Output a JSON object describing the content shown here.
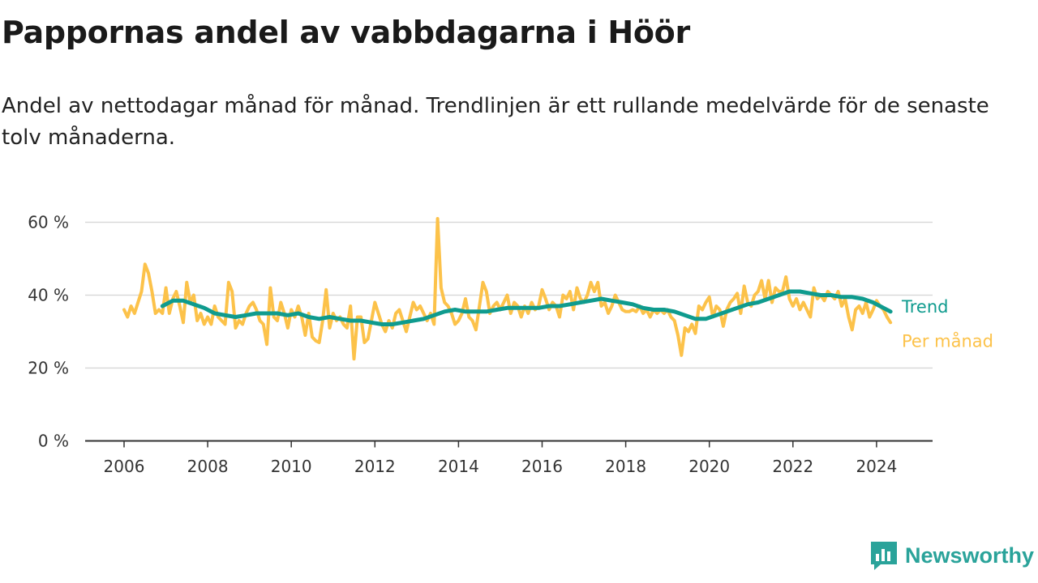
{
  "title": "Pappornas andel av vabbdagarna i Höör",
  "subtitle": "Andel av nettodagar månad för månad. Trendlinjen är ett rullande medelvärde för de senaste tolv månaderna.",
  "brand": "Newsworthy",
  "colors": {
    "monthly": "#fcc24a",
    "trend": "#0f9b8e",
    "grid": "#d9d9d9",
    "axis": "#333333",
    "brand": "#2aa39a"
  },
  "chart_data": {
    "type": "line",
    "x_ticks": [
      "2006",
      "2008",
      "2010",
      "2012",
      "2014",
      "2016",
      "2018",
      "2020",
      "2022",
      "2024"
    ],
    "y_ticks": [
      "0 %",
      "20 %",
      "40 %",
      "60 %"
    ],
    "y_tick_values": [
      0,
      20,
      40,
      60
    ],
    "ylim": [
      0,
      60
    ],
    "xlim": [
      "2006-01",
      "2024-05"
    ],
    "grid": true,
    "series": [
      {
        "name": "Per månad",
        "color": "#fcc24a",
        "points": [
          [
            "2006-01",
            36
          ],
          [
            "2006-02",
            34
          ],
          [
            "2006-03",
            37
          ],
          [
            "2006-04",
            35
          ],
          [
            "2006-05",
            38
          ],
          [
            "2006-06",
            41
          ],
          [
            "2006-07",
            48.5
          ],
          [
            "2006-08",
            46
          ],
          [
            "2006-09",
            41
          ],
          [
            "2006-10",
            35
          ],
          [
            "2006-11",
            36
          ],
          [
            "2006-12",
            35
          ],
          [
            "2007-01",
            42
          ],
          [
            "2007-02",
            35
          ],
          [
            "2007-03",
            39
          ],
          [
            "2007-04",
            41
          ],
          [
            "2007-05",
            37
          ],
          [
            "2007-06",
            32.5
          ],
          [
            "2007-07",
            43.5
          ],
          [
            "2007-08",
            38
          ],
          [
            "2007-09",
            40
          ],
          [
            "2007-10",
            33
          ],
          [
            "2007-11",
            35
          ],
          [
            "2007-12",
            32
          ],
          [
            "2008-01",
            34
          ],
          [
            "2008-02",
            32
          ],
          [
            "2008-03",
            37
          ],
          [
            "2008-04",
            34
          ],
          [
            "2008-05",
            33
          ],
          [
            "2008-06",
            32
          ],
          [
            "2008-07",
            43.5
          ],
          [
            "2008-08",
            41
          ],
          [
            "2008-09",
            31
          ],
          [
            "2008-10",
            33
          ],
          [
            "2008-11",
            32
          ],
          [
            "2008-12",
            35
          ],
          [
            "2009-01",
            37
          ],
          [
            "2009-02",
            38
          ],
          [
            "2009-03",
            36
          ],
          [
            "2009-04",
            33
          ],
          [
            "2009-05",
            32
          ],
          [
            "2009-06",
            26.5
          ],
          [
            "2009-07",
            42
          ],
          [
            "2009-08",
            34
          ],
          [
            "2009-09",
            33
          ],
          [
            "2009-10",
            38
          ],
          [
            "2009-11",
            35
          ],
          [
            "2009-12",
            31
          ],
          [
            "2010-01",
            36
          ],
          [
            "2010-02",
            34
          ],
          [
            "2010-03",
            37
          ],
          [
            "2010-04",
            34
          ],
          [
            "2010-05",
            29
          ],
          [
            "2010-06",
            35
          ],
          [
            "2010-07",
            28.5
          ],
          [
            "2010-08",
            27.5
          ],
          [
            "2010-09",
            27
          ],
          [
            "2010-10",
            33
          ],
          [
            "2010-11",
            41.5
          ],
          [
            "2010-12",
            31
          ],
          [
            "2011-01",
            35
          ],
          [
            "2011-02",
            33
          ],
          [
            "2011-03",
            34
          ],
          [
            "2011-04",
            32
          ],
          [
            "2011-05",
            31
          ],
          [
            "2011-06",
            37
          ],
          [
            "2011-07",
            22.5
          ],
          [
            "2011-08",
            34
          ],
          [
            "2011-09",
            34
          ],
          [
            "2011-10",
            27
          ],
          [
            "2011-11",
            28
          ],
          [
            "2011-12",
            33
          ],
          [
            "2012-01",
            38
          ],
          [
            "2012-02",
            35
          ],
          [
            "2012-03",
            32
          ],
          [
            "2012-04",
            30
          ],
          [
            "2012-05",
            33
          ],
          [
            "2012-06",
            31
          ],
          [
            "2012-07",
            35
          ],
          [
            "2012-08",
            36
          ],
          [
            "2012-09",
            33
          ],
          [
            "2012-10",
            30
          ],
          [
            "2012-11",
            34
          ],
          [
            "2012-12",
            38
          ],
          [
            "2013-01",
            36
          ],
          [
            "2013-02",
            37
          ],
          [
            "2013-03",
            35
          ],
          [
            "2013-04",
            33
          ],
          [
            "2013-05",
            35
          ],
          [
            "2013-06",
            32
          ],
          [
            "2013-07",
            61
          ],
          [
            "2013-08",
            42
          ],
          [
            "2013-09",
            38
          ],
          [
            "2013-10",
            37
          ],
          [
            "2013-11",
            35
          ],
          [
            "2013-12",
            32
          ],
          [
            "2014-01",
            33
          ],
          [
            "2014-02",
            35
          ],
          [
            "2014-03",
            39
          ],
          [
            "2014-04",
            34
          ],
          [
            "2014-05",
            33
          ],
          [
            "2014-06",
            30.5
          ],
          [
            "2014-07",
            37
          ],
          [
            "2014-08",
            43.5
          ],
          [
            "2014-09",
            41
          ],
          [
            "2014-10",
            35
          ],
          [
            "2014-11",
            37
          ],
          [
            "2014-12",
            38
          ],
          [
            "2015-01",
            36
          ],
          [
            "2015-02",
            38
          ],
          [
            "2015-03",
            40
          ],
          [
            "2015-04",
            35
          ],
          [
            "2015-05",
            38
          ],
          [
            "2015-06",
            37
          ],
          [
            "2015-07",
            34
          ],
          [
            "2015-08",
            37
          ],
          [
            "2015-09",
            35
          ],
          [
            "2015-10",
            38
          ],
          [
            "2015-11",
            36
          ],
          [
            "2015-12",
            37
          ],
          [
            "2016-01",
            41.5
          ],
          [
            "2016-02",
            39
          ],
          [
            "2016-03",
            36
          ],
          [
            "2016-04",
            38
          ],
          [
            "2016-05",
            37
          ],
          [
            "2016-06",
            34
          ],
          [
            "2016-07",
            40
          ],
          [
            "2016-08",
            39
          ],
          [
            "2016-09",
            41
          ],
          [
            "2016-10",
            36
          ],
          [
            "2016-11",
            42
          ],
          [
            "2016-12",
            39
          ],
          [
            "2017-01",
            38
          ],
          [
            "2017-02",
            40
          ],
          [
            "2017-03",
            43.5
          ],
          [
            "2017-04",
            41
          ],
          [
            "2017-05",
            43.5
          ],
          [
            "2017-06",
            37
          ],
          [
            "2017-07",
            38
          ],
          [
            "2017-08",
            35
          ],
          [
            "2017-09",
            37
          ],
          [
            "2017-10",
            40
          ],
          [
            "2017-11",
            38
          ],
          [
            "2017-12",
            36
          ],
          [
            "2018-01",
            35.5
          ],
          [
            "2018-02",
            35.5
          ],
          [
            "2018-03",
            36
          ],
          [
            "2018-04",
            35.5
          ],
          [
            "2018-05",
            37
          ],
          [
            "2018-06",
            35
          ],
          [
            "2018-07",
            36
          ],
          [
            "2018-08",
            34
          ],
          [
            "2018-09",
            36
          ],
          [
            "2018-10",
            35
          ],
          [
            "2018-11",
            36
          ],
          [
            "2018-12",
            35
          ],
          [
            "2019-01",
            36
          ],
          [
            "2019-02",
            34
          ],
          [
            "2019-03",
            33
          ],
          [
            "2019-04",
            29
          ],
          [
            "2019-05",
            23.5
          ],
          [
            "2019-06",
            31
          ],
          [
            "2019-07",
            30
          ],
          [
            "2019-08",
            32
          ],
          [
            "2019-09",
            29.5
          ],
          [
            "2019-10",
            37
          ],
          [
            "2019-11",
            36
          ],
          [
            "2019-12",
            38
          ],
          [
            "2020-01",
            39.5
          ],
          [
            "2020-02",
            34
          ],
          [
            "2020-03",
            37
          ],
          [
            "2020-04",
            36
          ],
          [
            "2020-05",
            31.5
          ],
          [
            "2020-06",
            36
          ],
          [
            "2020-07",
            38
          ],
          [
            "2020-08",
            39
          ],
          [
            "2020-09",
            40.5
          ],
          [
            "2020-10",
            35
          ],
          [
            "2020-11",
            42.5
          ],
          [
            "2020-12",
            38
          ],
          [
            "2021-01",
            37
          ],
          [
            "2021-02",
            40
          ],
          [
            "2021-03",
            41
          ],
          [
            "2021-04",
            44
          ],
          [
            "2021-05",
            39
          ],
          [
            "2021-06",
            44
          ],
          [
            "2021-07",
            38
          ],
          [
            "2021-08",
            42
          ],
          [
            "2021-09",
            41
          ],
          [
            "2021-10",
            41
          ],
          [
            "2021-11",
            45
          ],
          [
            "2021-12",
            39
          ],
          [
            "2022-01",
            37
          ],
          [
            "2022-02",
            39
          ],
          [
            "2022-03",
            36
          ],
          [
            "2022-04",
            38
          ],
          [
            "2022-05",
            36
          ],
          [
            "2022-06",
            34
          ],
          [
            "2022-07",
            42
          ],
          [
            "2022-08",
            39
          ],
          [
            "2022-09",
            40
          ],
          [
            "2022-10",
            38.5
          ],
          [
            "2022-11",
            41
          ],
          [
            "2022-12",
            40
          ],
          [
            "2023-01",
            39
          ],
          [
            "2023-02",
            41
          ],
          [
            "2023-03",
            37
          ],
          [
            "2023-04",
            39
          ],
          [
            "2023-05",
            34
          ],
          [
            "2023-06",
            30.5
          ],
          [
            "2023-07",
            36
          ],
          [
            "2023-08",
            37
          ],
          [
            "2023-09",
            35
          ],
          [
            "2023-10",
            38
          ],
          [
            "2023-11",
            34
          ],
          [
            "2023-12",
            36
          ],
          [
            "2024-01",
            38.5
          ],
          [
            "2024-02",
            37
          ],
          [
            "2024-03",
            36
          ],
          [
            "2024-04",
            34
          ],
          [
            "2024-05",
            32.5
          ]
        ]
      },
      {
        "name": "Trend",
        "color": "#0f9b8e",
        "points": [
          [
            "2006-12",
            37
          ],
          [
            "2007-03",
            38.5
          ],
          [
            "2007-06",
            38.5
          ],
          [
            "2007-09",
            37.5
          ],
          [
            "2007-12",
            36.5
          ],
          [
            "2008-03",
            35
          ],
          [
            "2008-06",
            34.5
          ],
          [
            "2008-09",
            34
          ],
          [
            "2008-12",
            34.5
          ],
          [
            "2009-03",
            35
          ],
          [
            "2009-06",
            35
          ],
          [
            "2009-09",
            35
          ],
          [
            "2009-12",
            34.5
          ],
          [
            "2010-03",
            35
          ],
          [
            "2010-06",
            34
          ],
          [
            "2010-09",
            33.5
          ],
          [
            "2010-12",
            34
          ],
          [
            "2011-03",
            33.5
          ],
          [
            "2011-06",
            33
          ],
          [
            "2011-09",
            33
          ],
          [
            "2011-12",
            32.5
          ],
          [
            "2012-03",
            32
          ],
          [
            "2012-06",
            32
          ],
          [
            "2012-09",
            32.5
          ],
          [
            "2012-12",
            33
          ],
          [
            "2013-03",
            33.5
          ],
          [
            "2013-06",
            34.5
          ],
          [
            "2013-09",
            35.5
          ],
          [
            "2013-12",
            36
          ],
          [
            "2014-03",
            35.5
          ],
          [
            "2014-06",
            35.5
          ],
          [
            "2014-09",
            35.5
          ],
          [
            "2014-12",
            36
          ],
          [
            "2015-03",
            36.5
          ],
          [
            "2015-06",
            36.5
          ],
          [
            "2015-09",
            36.5
          ],
          [
            "2015-12",
            36.5
          ],
          [
            "2016-03",
            37
          ],
          [
            "2016-06",
            37
          ],
          [
            "2016-09",
            37.5
          ],
          [
            "2016-12",
            38
          ],
          [
            "2017-03",
            38.5
          ],
          [
            "2017-06",
            39
          ],
          [
            "2017-09",
            38.5
          ],
          [
            "2017-12",
            38
          ],
          [
            "2018-03",
            37.5
          ],
          [
            "2018-06",
            36.5
          ],
          [
            "2018-09",
            36
          ],
          [
            "2018-12",
            36
          ],
          [
            "2019-03",
            35.5
          ],
          [
            "2019-06",
            34.5
          ],
          [
            "2019-09",
            33.5
          ],
          [
            "2019-12",
            33.5
          ],
          [
            "2020-03",
            34.5
          ],
          [
            "2020-06",
            35.5
          ],
          [
            "2020-09",
            36.5
          ],
          [
            "2020-12",
            37.5
          ],
          [
            "2021-03",
            38
          ],
          [
            "2021-06",
            39
          ],
          [
            "2021-09",
            40
          ],
          [
            "2021-12",
            41
          ],
          [
            "2022-03",
            41
          ],
          [
            "2022-06",
            40.5
          ],
          [
            "2022-09",
            40
          ],
          [
            "2022-12",
            40
          ],
          [
            "2023-03",
            39.5
          ],
          [
            "2023-06",
            39.5
          ],
          [
            "2023-09",
            39
          ],
          [
            "2023-12",
            38
          ],
          [
            "2024-03",
            36.5
          ],
          [
            "2024-05",
            35.5
          ]
        ]
      }
    ]
  }
}
